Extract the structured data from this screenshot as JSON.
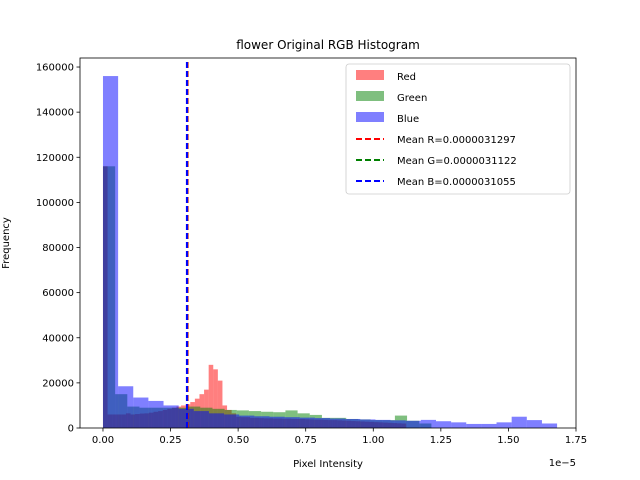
{
  "chart_data": {
    "type": "bar",
    "title": "flower Original RGB Histogram",
    "xlabel": "Pixel Intensity",
    "ylabel": "Frequency",
    "x_scale_label": "1e−5",
    "xlim": [
      -0.085,
      1.75
    ],
    "ylim": [
      0,
      164000
    ],
    "xticks": [
      0.0,
      0.25,
      0.5,
      0.75,
      1.0,
      1.25,
      1.5,
      1.75
    ],
    "xtick_labels": [
      "0.00",
      "0.25",
      "0.50",
      "0.75",
      "1.00",
      "1.25",
      "1.50",
      "1.75"
    ],
    "yticks": [
      0,
      20000,
      40000,
      60000,
      80000,
      100000,
      120000,
      140000,
      160000
    ],
    "ytick_labels": [
      "0",
      "20000",
      "40000",
      "60000",
      "80000",
      "100000",
      "120000",
      "140000",
      "160000"
    ],
    "grid": false,
    "legend_position": "top-right",
    "series": [
      {
        "name": "Red",
        "color": "#ff0000",
        "opacity": 0.5,
        "bins": [
          [
            0.0,
            0.017,
            116000
          ],
          [
            0.017,
            0.034,
            6000
          ],
          [
            0.034,
            0.051,
            6000
          ],
          [
            0.051,
            0.068,
            6000
          ],
          [
            0.068,
            0.085,
            6000
          ],
          [
            0.085,
            0.102,
            6500
          ],
          [
            0.102,
            0.119,
            6000
          ],
          [
            0.119,
            0.136,
            6200
          ],
          [
            0.136,
            0.153,
            6400
          ],
          [
            0.153,
            0.17,
            6500
          ],
          [
            0.17,
            0.187,
            6800
          ],
          [
            0.187,
            0.204,
            7200
          ],
          [
            0.204,
            0.221,
            7500
          ],
          [
            0.221,
            0.238,
            8000
          ],
          [
            0.238,
            0.255,
            8500
          ],
          [
            0.255,
            0.272,
            9000
          ],
          [
            0.272,
            0.289,
            9500
          ],
          [
            0.289,
            0.306,
            10000
          ],
          [
            0.306,
            0.323,
            10500
          ],
          [
            0.323,
            0.34,
            11500
          ],
          [
            0.34,
            0.357,
            13000
          ],
          [
            0.357,
            0.374,
            15000
          ],
          [
            0.374,
            0.391,
            17000
          ],
          [
            0.391,
            0.408,
            28000
          ],
          [
            0.408,
            0.425,
            26000
          ],
          [
            0.425,
            0.442,
            21000
          ],
          [
            0.442,
            0.459,
            10000
          ],
          [
            0.459,
            0.476,
            8000
          ],
          [
            0.476,
            0.493,
            6500
          ],
          [
            0.493,
            0.51,
            5000
          ],
          [
            0.51,
            0.527,
            4800
          ],
          [
            0.527,
            0.544,
            4800
          ],
          [
            0.544,
            0.561,
            4500
          ],
          [
            0.561,
            0.578,
            4500
          ],
          [
            0.578,
            0.595,
            4400
          ],
          [
            0.595,
            0.612,
            4300
          ],
          [
            0.612,
            0.629,
            4300
          ],
          [
            0.629,
            0.646,
            4200
          ],
          [
            0.646,
            0.663,
            4200
          ],
          [
            0.663,
            0.68,
            4100
          ],
          [
            0.68,
            0.697,
            4100
          ],
          [
            0.697,
            0.714,
            4000
          ],
          [
            0.714,
            0.731,
            4000
          ],
          [
            0.731,
            0.748,
            4000
          ],
          [
            0.748,
            0.765,
            3900
          ],
          [
            0.765,
            0.782,
            3800
          ],
          [
            0.782,
            0.799,
            3700
          ],
          [
            0.799,
            0.816,
            3700
          ],
          [
            0.816,
            0.833,
            3600
          ],
          [
            0.833,
            0.85,
            3500
          ],
          [
            0.85,
            0.867,
            3500
          ],
          [
            0.867,
            0.884,
            3400
          ],
          [
            0.884,
            0.901,
            3300
          ],
          [
            0.901,
            0.918,
            3200
          ],
          [
            0.918,
            0.935,
            3100
          ],
          [
            0.935,
            0.952,
            3000
          ],
          [
            0.952,
            0.969,
            2900
          ],
          [
            0.969,
            0.986,
            2800
          ],
          [
            0.986,
            1.003,
            2700
          ],
          [
            1.003,
            1.02,
            2600
          ],
          [
            1.02,
            1.037,
            2500
          ],
          [
            1.037,
            1.054,
            2400
          ],
          [
            1.054,
            1.071,
            2300
          ],
          [
            1.071,
            1.088,
            2200
          ],
          [
            1.088,
            1.105,
            2100
          ],
          [
            1.105,
            1.122,
            2000
          ]
        ]
      },
      {
        "name": "Green",
        "color": "#008000",
        "opacity": 0.5,
        "bins": [
          [
            0.0,
            0.045,
            116000
          ],
          [
            0.045,
            0.09,
            15000
          ],
          [
            0.09,
            0.135,
            9500
          ],
          [
            0.135,
            0.18,
            9000
          ],
          [
            0.18,
            0.225,
            9000
          ],
          [
            0.225,
            0.27,
            9000
          ],
          [
            0.27,
            0.315,
            9000
          ],
          [
            0.315,
            0.36,
            9500
          ],
          [
            0.36,
            0.405,
            9000
          ],
          [
            0.405,
            0.45,
            8500
          ],
          [
            0.45,
            0.495,
            8000
          ],
          [
            0.495,
            0.54,
            7800
          ],
          [
            0.54,
            0.585,
            7500
          ],
          [
            0.585,
            0.63,
            7200
          ],
          [
            0.63,
            0.675,
            7000
          ],
          [
            0.675,
            0.72,
            7800
          ],
          [
            0.72,
            0.765,
            6500
          ],
          [
            0.765,
            0.81,
            5800
          ],
          [
            0.81,
            0.855,
            4500
          ],
          [
            0.855,
            0.9,
            4500
          ],
          [
            0.9,
            0.945,
            4000
          ],
          [
            0.945,
            0.99,
            3800
          ],
          [
            0.99,
            1.035,
            3500
          ],
          [
            1.035,
            1.08,
            3500
          ],
          [
            1.08,
            1.125,
            5500
          ],
          [
            1.125,
            1.17,
            3200
          ],
          [
            1.17,
            1.215,
            2000
          ]
        ]
      },
      {
        "name": "Blue",
        "color": "#0000ff",
        "opacity": 0.5,
        "bins": [
          [
            0.0,
            0.056,
            156000
          ],
          [
            0.056,
            0.112,
            18500
          ],
          [
            0.112,
            0.168,
            13500
          ],
          [
            0.168,
            0.224,
            12000
          ],
          [
            0.224,
            0.28,
            10000
          ],
          [
            0.28,
            0.336,
            8500
          ],
          [
            0.336,
            0.392,
            7500
          ],
          [
            0.392,
            0.448,
            6500
          ],
          [
            0.448,
            0.504,
            6000
          ],
          [
            0.504,
            0.56,
            5500
          ],
          [
            0.56,
            0.616,
            5200
          ],
          [
            0.616,
            0.672,
            5000
          ],
          [
            0.672,
            0.728,
            4800
          ],
          [
            0.728,
            0.784,
            4600
          ],
          [
            0.784,
            0.84,
            4400
          ],
          [
            0.84,
            0.896,
            4200
          ],
          [
            0.896,
            0.952,
            4000
          ],
          [
            0.952,
            1.008,
            3800
          ],
          [
            1.008,
            1.064,
            3600
          ],
          [
            1.064,
            1.12,
            3400
          ],
          [
            1.12,
            1.176,
            3200
          ],
          [
            1.176,
            1.232,
            3600
          ],
          [
            1.232,
            1.288,
            3000
          ],
          [
            1.288,
            1.344,
            2500
          ],
          [
            1.344,
            1.4,
            1800
          ],
          [
            1.4,
            1.456,
            1800
          ],
          [
            1.456,
            1.512,
            2500
          ],
          [
            1.512,
            1.568,
            5000
          ],
          [
            1.568,
            1.624,
            3500
          ],
          [
            1.624,
            1.68,
            2000
          ]
        ]
      }
    ],
    "mean_lines": [
      {
        "label": "Mean R=0.0000031297",
        "x": 0.31297,
        "color": "#ff0000"
      },
      {
        "label": "Mean G=0.0000031122",
        "x": 0.31122,
        "color": "#008000"
      },
      {
        "label": "Mean B=0.0000031055",
        "x": 0.31055,
        "color": "#0000ff"
      }
    ]
  }
}
